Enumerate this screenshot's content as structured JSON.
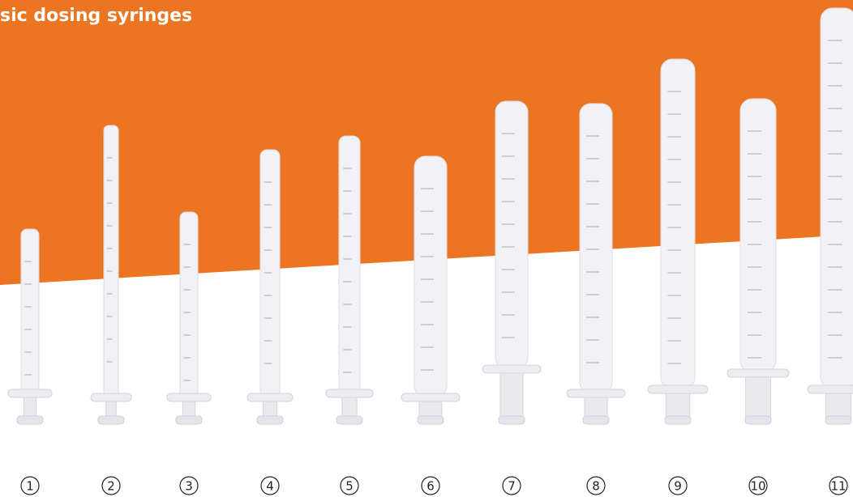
{
  "header": {
    "title": "sic dosing syringes"
  },
  "items": [
    {
      "label": "1"
    },
    {
      "label": "2"
    },
    {
      "label": "3"
    },
    {
      "label": "4"
    },
    {
      "label": "5"
    },
    {
      "label": "6"
    },
    {
      "label": "7"
    },
    {
      "label": "8"
    },
    {
      "label": "9"
    },
    {
      "label": "10"
    },
    {
      "label": "11"
    }
  ]
}
